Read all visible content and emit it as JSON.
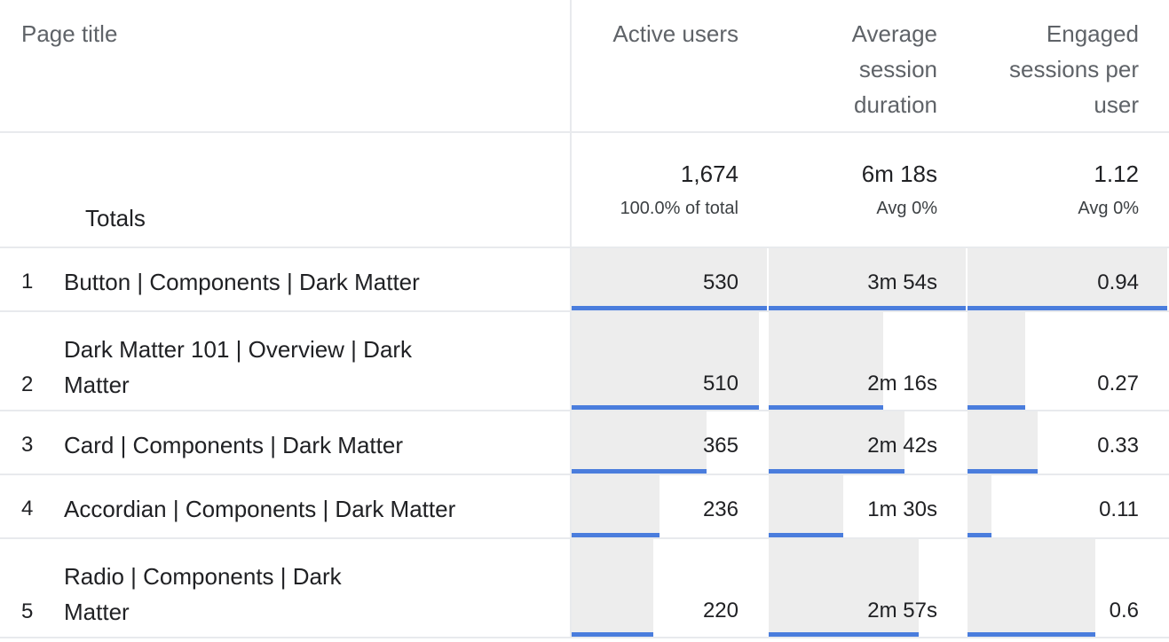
{
  "columns": {
    "page_title": "Page title",
    "active_users": "Active users",
    "avg_session_duration": [
      "Average",
      "session",
      "duration"
    ],
    "engaged_sessions_per_user": [
      "Engaged",
      "sessions per",
      "user"
    ]
  },
  "totals": {
    "label": "Totals",
    "active_users": "1,674",
    "active_users_sub": "100.0% of total",
    "avg_session_duration": "6m 18s",
    "avg_session_duration_sub": "Avg 0%",
    "engaged_sessions": "1.12",
    "engaged_sessions_sub": "Avg 0%"
  },
  "rows": [
    {
      "rank": "1",
      "title": "Button | Components | Dark Matter",
      "active_users": "530",
      "active_users_pct": 100,
      "duration": "3m 54s",
      "duration_pct": 100,
      "engaged": "0.94",
      "engaged_pct": 100
    },
    {
      "rank": "2",
      "title": "Dark Matter 101 | Overview | Dark Matter",
      "active_users": "510",
      "active_users_pct": 96,
      "duration": "2m 16s",
      "duration_pct": 58,
      "engaged": "0.27",
      "engaged_pct": 29
    },
    {
      "rank": "3",
      "title": "Card | Components | Dark Matter",
      "active_users": "365",
      "active_users_pct": 69,
      "duration": "2m 42s",
      "duration_pct": 69,
      "engaged": "0.33",
      "engaged_pct": 35
    },
    {
      "rank": "4",
      "title": "Accordian | Components | Dark Matter",
      "active_users": "236",
      "active_users_pct": 45,
      "duration": "1m 30s",
      "duration_pct": 38,
      "engaged": "0.11",
      "engaged_pct": 12
    },
    {
      "rank": "5",
      "title": "Radio | Components | Dark Matter",
      "active_users": "220",
      "active_users_pct": 42,
      "duration": "2m 57s",
      "duration_pct": 76,
      "engaged": "0.6",
      "engaged_pct": 64
    }
  ],
  "colors": {
    "bar_fill": "#ededed",
    "bar_accent": "#4a7ddd",
    "divider": "#e8eaed"
  }
}
